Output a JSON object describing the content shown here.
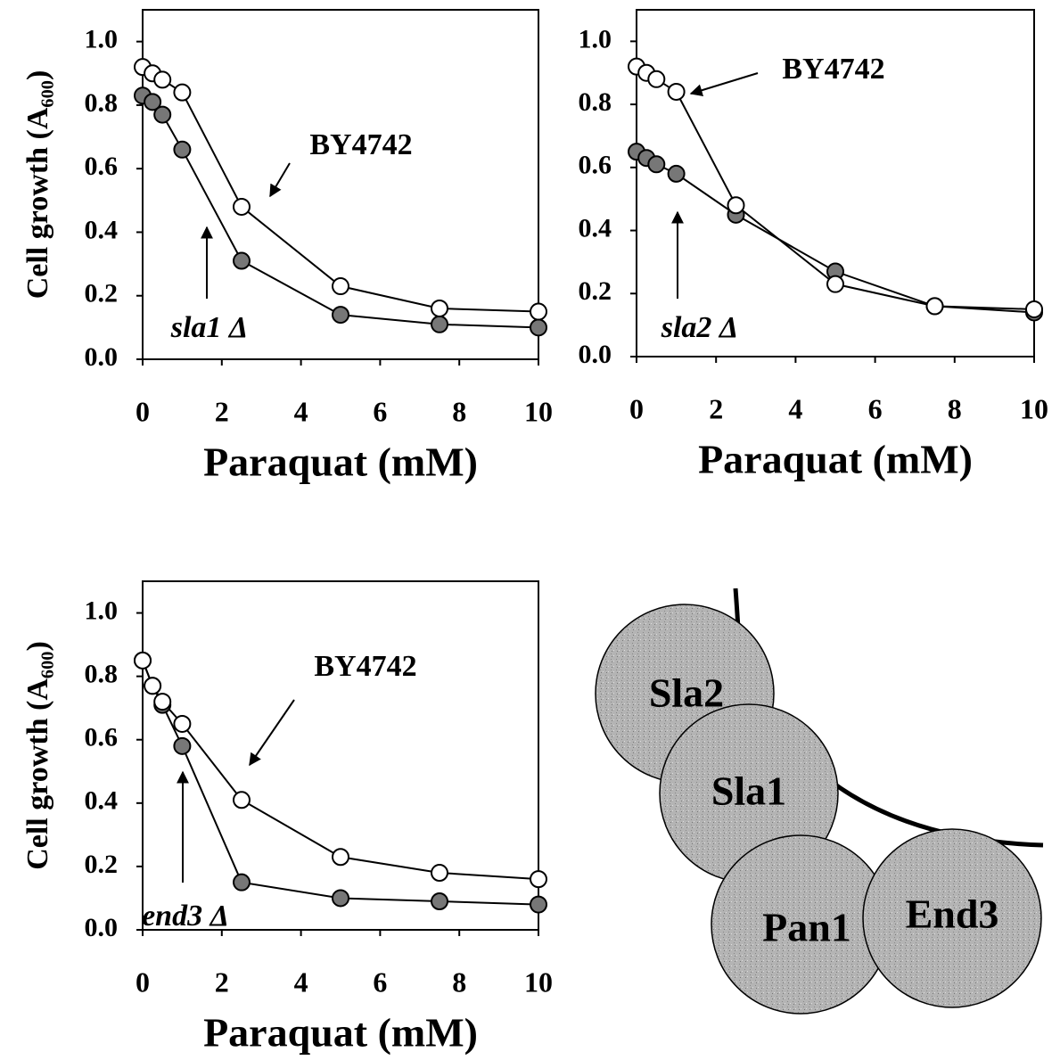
{
  "chart_data": [
    {
      "type": "line",
      "x_label": "Paraquat (mM)",
      "y_label": "Cell growth (A₆₀₀)",
      "x": [
        0,
        0.25,
        0.5,
        1,
        2.5,
        5,
        7.5,
        10
      ],
      "series": [
        {
          "name": "BY4742",
          "color": "#ffffff",
          "values": [
            0.92,
            0.9,
            0.88,
            0.84,
            0.48,
            0.23,
            0.16,
            0.15
          ]
        },
        {
          "name": "sla1 Δ",
          "color": "#777777",
          "values": [
            0.83,
            0.81,
            0.77,
            0.66,
            0.31,
            0.14,
            0.11,
            0.1
          ]
        }
      ],
      "xlim": [
        0,
        10
      ],
      "xticks": [
        0,
        2,
        4,
        6,
        8,
        10
      ],
      "ylim": [
        0,
        1.1
      ],
      "yticks": [
        {
          "value": 0,
          "label": "0.0"
        },
        0.2,
        0.4,
        0.6,
        0.8,
        {
          "value": 1,
          "label": "1.0"
        }
      ]
    },
    {
      "type": "line",
      "x_label": "Paraquat (mM)",
      "x": [
        0,
        0.25,
        0.5,
        1,
        2.5,
        5,
        7.5,
        10
      ],
      "series": [
        {
          "name": "BY4742",
          "color": "#ffffff",
          "values": [
            0.92,
            0.9,
            0.88,
            0.84,
            0.48,
            0.23,
            0.16,
            0.15
          ]
        },
        {
          "name": "sla2 Δ",
          "color": "#777777",
          "values": [
            0.65,
            0.63,
            0.61,
            0.58,
            0.45,
            0.27,
            0.16,
            0.14
          ]
        }
      ],
      "xlim": [
        0,
        10
      ],
      "xticks": [
        0,
        2,
        4,
        6,
        8,
        10
      ],
      "ylim": [
        0,
        1.1
      ],
      "yticks": [
        {
          "value": 0,
          "label": "0.0"
        },
        0.2,
        0.4,
        0.6,
        0.8,
        {
          "value": 1,
          "label": "1.0"
        }
      ]
    },
    {
      "type": "line",
      "x_label": "Paraquat (mM)",
      "y_label": "Cell growth (A₆₀₀)",
      "x": [
        0,
        0.25,
        0.5,
        1,
        2.5,
        5,
        7.5,
        10
      ],
      "series": [
        {
          "name": "BY4742",
          "color": "#ffffff",
          "values": [
            0.85,
            0.77,
            0.72,
            0.65,
            0.41,
            0.23,
            0.18,
            0.16
          ]
        },
        {
          "name": "end3 Δ",
          "color": "#777777",
          "values": [
            0.85,
            0.77,
            0.71,
            0.58,
            0.15,
            0.1,
            0.09,
            0.08
          ]
        }
      ],
      "xlim": [
        0,
        10
      ],
      "xticks": [
        0,
        2,
        4,
        6,
        8,
        10
      ],
      "ylim": [
        0,
        1.1
      ],
      "yticks": [
        {
          "value": 0,
          "label": "0.0"
        },
        0.2,
        0.4,
        0.6,
        0.8,
        {
          "value": 1,
          "label": "1.0"
        }
      ]
    }
  ],
  "diagram": {
    "nodes": [
      {
        "label": "Sla2"
      },
      {
        "label": "Sla1"
      },
      {
        "label": "Pan1"
      },
      {
        "label": "End3"
      }
    ]
  }
}
